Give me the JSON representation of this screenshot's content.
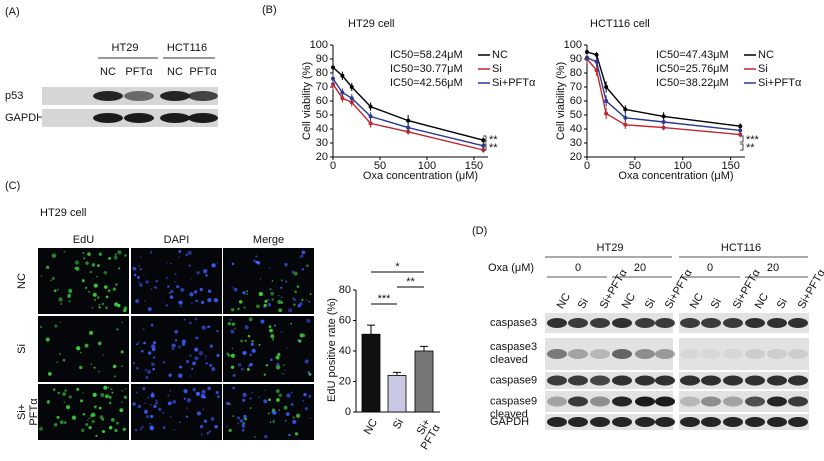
{
  "panel_labels": [
    "(A)",
    "(B)",
    "(C)",
    "(D)"
  ],
  "western_a": {
    "cell_lines": [
      "HT29",
      "HCT116"
    ],
    "lanes": [
      "NC",
      "PFTα",
      "NC",
      "PFTα"
    ],
    "rows": [
      "p53",
      "GAPDH"
    ]
  },
  "microscopy": {
    "title": "HT29 cell",
    "columns": [
      "EdU",
      "DAPI",
      "Merge"
    ],
    "rows": [
      "NC",
      "Si",
      "Si+\nPFTα"
    ]
  },
  "western_d": {
    "cell_lines": [
      "HT29",
      "HCT116"
    ],
    "treatment_label": "Oxa (μM)",
    "doses": [
      "0",
      "20",
      "0",
      "20"
    ],
    "lanes": [
      "NC",
      "Si",
      "Si+PFTα"
    ],
    "rows": [
      "caspase3",
      "caspase3\ncleaved",
      "caspase9",
      "caspase9\ncleaved",
      "GAPDH"
    ]
  },
  "chart_data": [
    {
      "type": "line",
      "title": "HT29 cell",
      "x_label": "Oxa concentration (μM)",
      "y_label": "Cell viability (%)",
      "x": [
        0,
        10,
        20,
        40,
        80,
        160
      ],
      "xlim": [
        0,
        165
      ],
      "xticks": [
        0,
        50,
        100,
        150
      ],
      "ylim": [
        20,
        100
      ],
      "yticks": [
        20,
        30,
        40,
        50,
        60,
        70,
        80,
        90,
        100
      ],
      "series": [
        {
          "name": "NC",
          "color": "#000000",
          "ic50_label": "IC50=58.24μM",
          "values": [
            84,
            78,
            70,
            56,
            46,
            32
          ],
          "errors": [
            5,
            3,
            3,
            3,
            4,
            2
          ]
        },
        {
          "name": "Si",
          "color": "#c0262d",
          "ic50_label": "IC50=30.77μM",
          "values": [
            72,
            62,
            59,
            44,
            38,
            25
          ],
          "errors": [
            4,
            3,
            3,
            3,
            2,
            2
          ]
        },
        {
          "name": "Si+PFTα",
          "color": "#2b3990",
          "ic50_label": "IC50=42.56μM",
          "values": [
            76,
            66,
            62,
            49,
            41,
            28
          ],
          "errors": [
            4,
            3,
            3,
            3,
            3,
            2
          ]
        }
      ],
      "significance": [
        "**",
        "**"
      ]
    },
    {
      "type": "line",
      "title": "HCT116 cell",
      "x_label": "Oxa concentration (μM)",
      "y_label": "Cell viability (%)",
      "x": [
        0,
        10,
        20,
        40,
        80,
        160
      ],
      "xlim": [
        0,
        165
      ],
      "xticks": [
        0,
        50,
        100,
        150
      ],
      "ylim": [
        20,
        100
      ],
      "yticks": [
        20,
        30,
        40,
        50,
        60,
        70,
        80,
        90,
        100
      ],
      "series": [
        {
          "name": "NC",
          "color": "#000000",
          "ic50_label": "IC50=47.43μM",
          "values": [
            95,
            93,
            70,
            54,
            49,
            42
          ],
          "errors": [
            2,
            2,
            4,
            3,
            3,
            2
          ]
        },
        {
          "name": "Si",
          "color": "#c0262d",
          "ic50_label": "IC50=25.76μM",
          "values": [
            90,
            82,
            51,
            43,
            41,
            36
          ],
          "errors": [
            3,
            4,
            4,
            3,
            2,
            2
          ]
        },
        {
          "name": "Si+PFTα",
          "color": "#2b3990",
          "ic50_label": "IC50=38.22μM",
          "values": [
            91,
            88,
            60,
            48,
            45,
            39
          ],
          "errors": [
            3,
            3,
            4,
            3,
            2,
            2
          ]
        }
      ],
      "significance": [
        "***",
        "**"
      ]
    },
    {
      "type": "bar",
      "y_label": "EdU positive rate (%)",
      "categories": [
        "NC",
        "Si",
        "Si+\nPFTα"
      ],
      "values": [
        51,
        24,
        40
      ],
      "errors": [
        6,
        2,
        3
      ],
      "colors": [
        "#111111",
        "#c9c9e3",
        "#777777"
      ],
      "ylim": [
        0,
        80
      ],
      "yticks": [
        0,
        20,
        40,
        60,
        80
      ],
      "significance": [
        "*",
        "***",
        "**"
      ]
    }
  ]
}
